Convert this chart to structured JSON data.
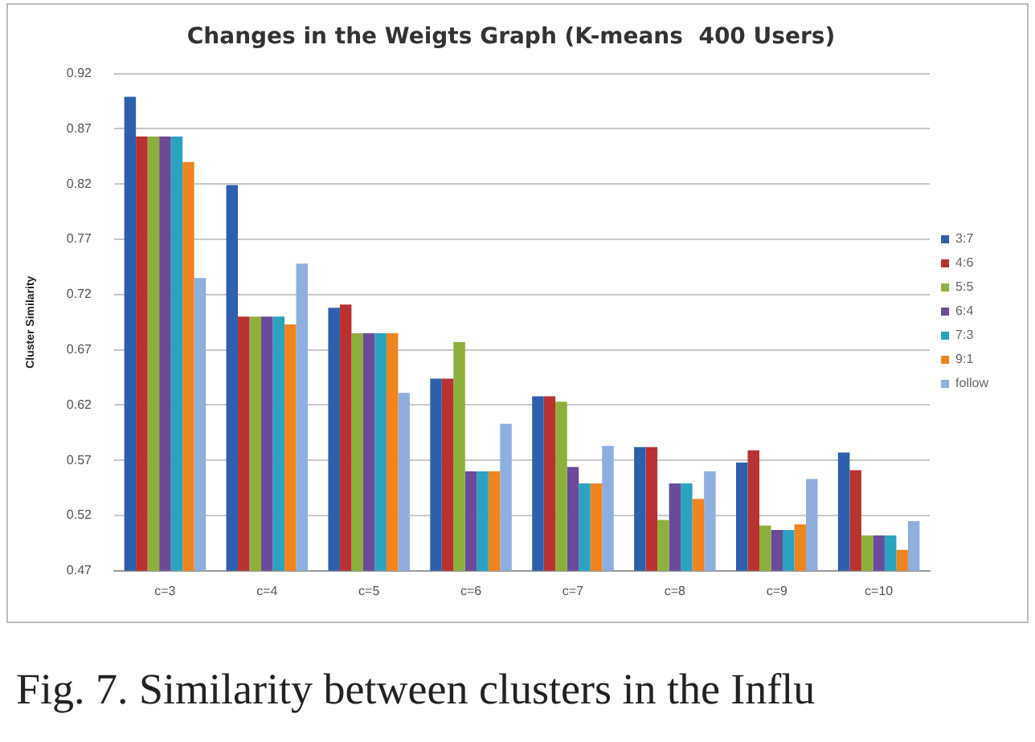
{
  "chart_data": {
    "type": "bar",
    "title": "Changes in the Weigts Graph (K-means  400 Users)",
    "ylabel": "Cluster Similarity",
    "categories": [
      "c=3",
      "c=4",
      "c=5",
      "c=6",
      "c=7",
      "c=8",
      "c=9",
      "c=10"
    ],
    "series": [
      {
        "name": "3:7",
        "color": "#2e5fac",
        "values": [
          0.899,
          0.819,
          0.708,
          0.644,
          0.628,
          0.582,
          0.568,
          0.577
        ]
      },
      {
        "name": "4:6",
        "color": "#b83232",
        "values": [
          0.863,
          0.7,
          0.711,
          0.644,
          0.628,
          0.582,
          0.579,
          0.561
        ]
      },
      {
        "name": "5:5",
        "color": "#8db03c",
        "values": [
          0.863,
          0.7,
          0.685,
          0.677,
          0.623,
          0.516,
          0.511,
          0.502
        ]
      },
      {
        "name": "6:4",
        "color": "#6a4a9a",
        "values": [
          0.863,
          0.7,
          0.685,
          0.56,
          0.564,
          0.549,
          0.507,
          0.502
        ]
      },
      {
        "name": "7:3",
        "color": "#2aa3c0",
        "values": [
          0.863,
          0.7,
          0.685,
          0.56,
          0.549,
          0.549,
          0.507,
          0.502
        ]
      },
      {
        "name": "9:1",
        "color": "#f0841e",
        "values": [
          0.84,
          0.693,
          0.685,
          0.56,
          0.549,
          0.535,
          0.512,
          0.489
        ]
      },
      {
        "name": "follow",
        "color": "#8eaede",
        "values": [
          0.735,
          0.748,
          0.631,
          0.603,
          0.583,
          0.56,
          0.553,
          0.515
        ]
      }
    ],
    "ylim": [
      0.47,
      0.92
    ],
    "yticks": [
      0.47,
      0.52,
      0.57,
      0.62,
      0.67,
      0.72,
      0.77,
      0.82,
      0.87,
      0.92
    ],
    "grid": "y",
    "legend": "right",
    "annotations": [
      "Fig. 7. Similarity between clusters in the Influ"
    ]
  }
}
